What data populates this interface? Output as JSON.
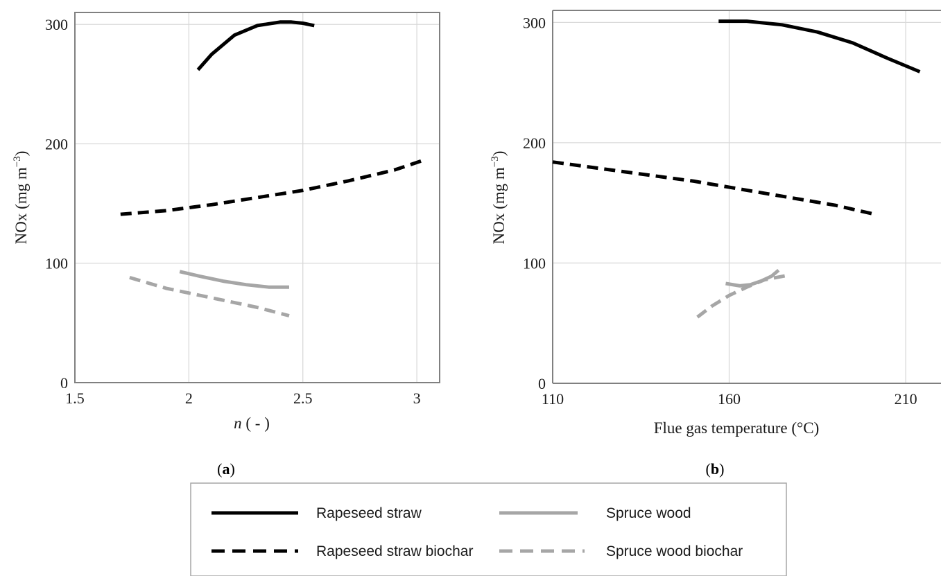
{
  "colors": {
    "black": "#000000",
    "gray": "#a6a6a6",
    "grid": "#d9d9d9",
    "frame": "#808080"
  },
  "chart_data": [
    {
      "type": "line",
      "panel_label": "(a)",
      "xlabel_italic": "n",
      "xlabel_rest": " ( - )",
      "ylabel_main": "NOx (mg m",
      "ylabel_sup": "−3",
      "ylabel_close": ")",
      "xlim": [
        1.5,
        3.1
      ],
      "ylim": [
        0,
        310
      ],
      "x_ticks": [
        1.5,
        2,
        2.5,
        3
      ],
      "x_tick_labels": [
        "1.5",
        "2",
        "2.5",
        "3"
      ],
      "y_ticks": [
        0,
        100,
        200,
        300
      ],
      "y_tick_labels": [
        "0",
        "100",
        "200",
        "300"
      ],
      "grid": true,
      "series": [
        {
          "name": "Rapeseed straw",
          "style": "solid",
          "color": "black",
          "points": [
            [
              2.04,
              262
            ],
            [
              2.1,
              275
            ],
            [
              2.2,
              291
            ],
            [
              2.3,
              299
            ],
            [
              2.4,
              302
            ],
            [
              2.45,
              302
            ],
            [
              2.5,
              301
            ],
            [
              2.55,
              299
            ]
          ]
        },
        {
          "name": "Rapeseed straw biochar",
          "style": "dashed",
          "color": "black",
          "points": [
            [
              1.7,
              141
            ],
            [
              1.9,
              144
            ],
            [
              2.1,
              149
            ],
            [
              2.3,
              155
            ],
            [
              2.5,
              161
            ],
            [
              2.7,
              169
            ],
            [
              2.9,
              178
            ],
            [
              3.04,
              187
            ]
          ]
        },
        {
          "name": "Spruce wood",
          "style": "solid",
          "color": "gray",
          "points": [
            [
              1.96,
              93
            ],
            [
              2.05,
              89
            ],
            [
              2.15,
              85
            ],
            [
              2.25,
              82
            ],
            [
              2.35,
              80
            ],
            [
              2.44,
              80
            ]
          ]
        },
        {
          "name": "Spruce wood biochar",
          "style": "dashed",
          "color": "gray",
          "points": [
            [
              1.74,
              88
            ],
            [
              1.9,
              79
            ],
            [
              2.1,
              71
            ],
            [
              2.3,
              63
            ],
            [
              2.44,
              56
            ]
          ]
        }
      ]
    },
    {
      "type": "line",
      "panel_label": "(b)",
      "xlabel": "Flue gas temperature (°C)",
      "ylabel_main": "NOx (mg m",
      "ylabel_sup": "−3",
      "ylabel_close": ")",
      "xlim": [
        110,
        220
      ],
      "ylim": [
        0,
        310
      ],
      "x_ticks": [
        110,
        160,
        210
      ],
      "x_tick_labels": [
        "110",
        "160",
        "210"
      ],
      "y_ticks": [
        0,
        100,
        200,
        300
      ],
      "y_tick_labels": [
        "0",
        "100",
        "200",
        "300"
      ],
      "grid": true,
      "series": [
        {
          "name": "Rapeseed straw",
          "style": "solid",
          "color": "black",
          "points": [
            [
              157,
              301
            ],
            [
              165,
              301
            ],
            [
              175,
              298
            ],
            [
              185,
              292
            ],
            [
              195,
              283
            ],
            [
              205,
              270
            ],
            [
              214,
              259
            ]
          ]
        },
        {
          "name": "Rapeseed straw biochar",
          "style": "dashed",
          "color": "black",
          "points": [
            [
              110,
              184
            ],
            [
              130,
              176
            ],
            [
              150,
              168
            ],
            [
              170,
              158
            ],
            [
              190,
              148
            ],
            [
              202,
              140
            ]
          ]
        },
        {
          "name": "Spruce wood",
          "style": "solid",
          "color": "gray",
          "points": [
            [
              159,
              83
            ],
            [
              163,
              81
            ],
            [
              166,
              82
            ],
            [
              169,
              85
            ],
            [
              172,
              89
            ],
            [
              174,
              94
            ]
          ]
        },
        {
          "name": "Spruce wood biochar",
          "style": "dashed",
          "color": "gray",
          "points": [
            [
              151,
              55
            ],
            [
              155,
              64
            ],
            [
              160,
              73
            ],
            [
              165,
              80
            ],
            [
              170,
              86
            ],
            [
              177,
              90
            ]
          ]
        }
      ]
    }
  ],
  "legend": [
    {
      "label": "Rapeseed straw",
      "style": "solid",
      "color": "black"
    },
    {
      "label": "Spruce wood",
      "style": "solid",
      "color": "gray"
    },
    {
      "label": "Rapeseed straw biochar",
      "style": "dashed",
      "color": "black"
    },
    {
      "label": "Spruce wood biochar",
      "style": "dashed",
      "color": "gray"
    }
  ]
}
